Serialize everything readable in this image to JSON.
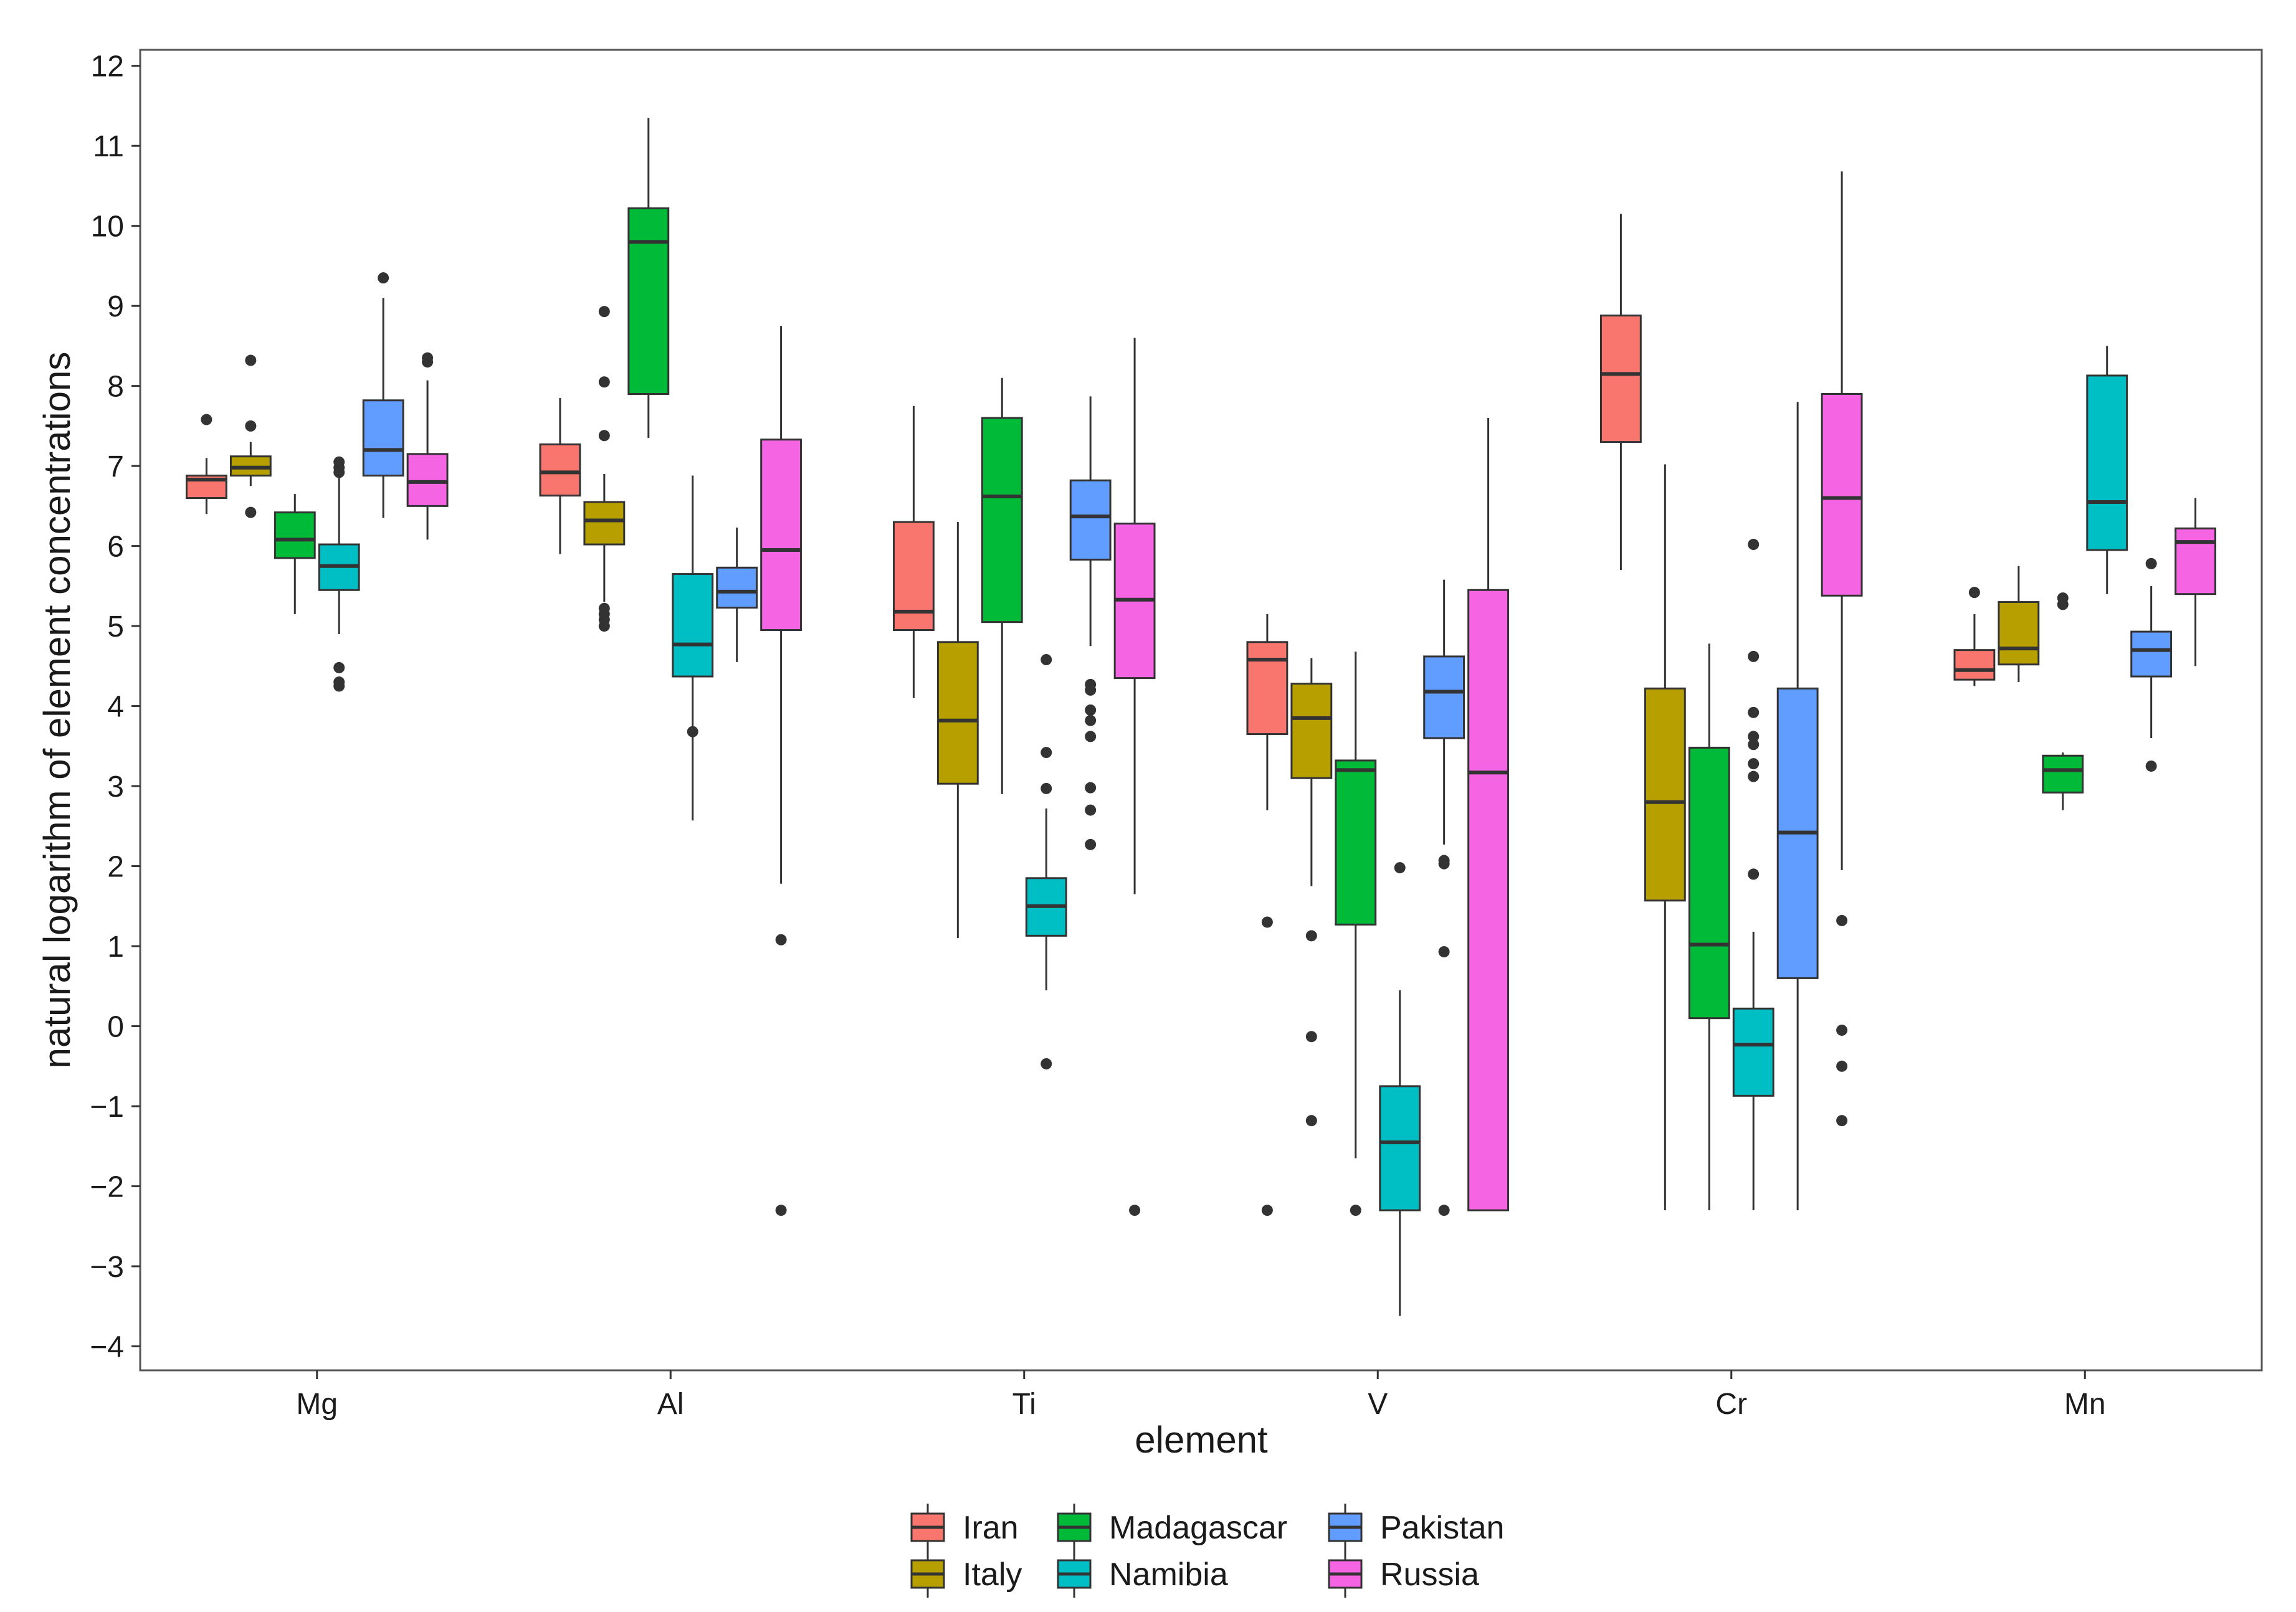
{
  "chart_data": {
    "type": "boxplot",
    "title": "",
    "xlabel": "element",
    "ylabel": "natural logarithm of element concentrations",
    "ylim": [
      -4.3,
      12.2
    ],
    "yticks": [
      "-4",
      "-3",
      "-2",
      "-1",
      "0",
      "1",
      "2",
      "3",
      "4",
      "5",
      "6",
      "7",
      "8",
      "9",
      "10",
      "11",
      "12"
    ],
    "categories": [
      "Mg",
      "Al",
      "Ti",
      "V",
      "Cr",
      "Mn"
    ],
    "legend_position": "bottom",
    "series": [
      {
        "name": "Iran",
        "color": "#F8766D",
        "boxes": [
          {
            "min": 6.4,
            "q1": 6.6,
            "median": 6.83,
            "q3": 6.88,
            "max": 7.1,
            "outliers": [
              7.58
            ]
          },
          {
            "min": 5.9,
            "q1": 6.63,
            "median": 6.92,
            "q3": 7.27,
            "max": 7.85,
            "outliers": []
          },
          {
            "min": 4.1,
            "q1": 4.95,
            "median": 5.18,
            "q3": 6.3,
            "max": 7.75,
            "outliers": []
          },
          {
            "min": 2.7,
            "q1": 3.65,
            "median": 4.58,
            "q3": 4.8,
            "max": 5.15,
            "outliers": [
              1.3,
              -2.3
            ]
          },
          {
            "min": 5.7,
            "q1": 7.3,
            "median": 8.15,
            "q3": 8.88,
            "max": 10.15,
            "outliers": []
          },
          {
            "min": 4.25,
            "q1": 4.33,
            "median": 4.45,
            "q3": 4.7,
            "max": 5.15,
            "outliers": [
              5.42
            ]
          }
        ]
      },
      {
        "name": "Italy",
        "color": "#B79F00",
        "boxes": [
          {
            "min": 6.75,
            "q1": 6.88,
            "median": 6.98,
            "q3": 7.12,
            "max": 7.3,
            "outliers": [
              8.32,
              7.5,
              6.42
            ]
          },
          {
            "min": 5.3,
            "q1": 6.02,
            "median": 6.32,
            "q3": 6.55,
            "max": 6.9,
            "outliers": [
              8.93,
              8.05,
              7.38,
              5.22,
              5.15,
              5.08,
              5.0
            ]
          },
          {
            "min": 1.1,
            "q1": 3.03,
            "median": 3.82,
            "q3": 4.8,
            "max": 6.3,
            "outliers": []
          },
          {
            "min": 1.75,
            "q1": 3.1,
            "median": 3.85,
            "q3": 4.28,
            "max": 4.6,
            "outliers": [
              1.13,
              -0.13,
              -1.18
            ]
          },
          {
            "min": -2.3,
            "q1": 1.57,
            "median": 2.8,
            "q3": 4.22,
            "max": 7.02,
            "outliers": []
          },
          {
            "min": 4.3,
            "q1": 4.52,
            "median": 4.72,
            "q3": 5.3,
            "max": 5.75,
            "outliers": []
          }
        ]
      },
      {
        "name": "Madagascar",
        "color": "#00BA38",
        "boxes": [
          {
            "min": 5.15,
            "q1": 5.85,
            "median": 6.08,
            "q3": 6.42,
            "max": 6.65,
            "outliers": []
          },
          {
            "min": 7.35,
            "q1": 7.9,
            "median": 9.8,
            "q3": 10.22,
            "max": 11.35,
            "outliers": []
          },
          {
            "min": 2.9,
            "q1": 5.05,
            "median": 6.62,
            "q3": 7.6,
            "max": 8.1,
            "outliers": []
          },
          {
            "min": -1.65,
            "q1": 1.27,
            "median": 3.2,
            "q3": 3.32,
            "max": 4.68,
            "outliers": [
              -2.3
            ]
          },
          {
            "min": -2.3,
            "q1": 0.1,
            "median": 1.02,
            "q3": 3.48,
            "max": 4.78,
            "outliers": []
          },
          {
            "min": 2.7,
            "q1": 2.92,
            "median": 3.2,
            "q3": 3.38,
            "max": 3.42,
            "outliers": [
              5.35,
              5.27
            ]
          }
        ]
      },
      {
        "name": "Namibia",
        "color": "#00BFC4",
        "boxes": [
          {
            "min": 4.9,
            "q1": 5.45,
            "median": 5.75,
            "q3": 6.02,
            "max": 6.85,
            "outliers": [
              7.05,
              6.98,
              6.92,
              4.48,
              4.3,
              4.25
            ]
          },
          {
            "min": 2.57,
            "q1": 4.37,
            "median": 4.77,
            "q3": 5.65,
            "max": 6.88,
            "outliers": [
              3.68
            ]
          },
          {
            "min": 0.45,
            "q1": 1.13,
            "median": 1.5,
            "q3": 1.85,
            "max": 2.72,
            "outliers": [
              4.58,
              3.42,
              2.97,
              -0.47
            ]
          },
          {
            "min": -3.62,
            "q1": -2.3,
            "median": -1.45,
            "q3": -0.75,
            "max": 0.45,
            "outliers": [
              1.98
            ]
          },
          {
            "min": -2.3,
            "q1": -0.87,
            "median": -0.23,
            "q3": 0.22,
            "max": 1.18,
            "outliers": [
              6.02,
              4.62,
              3.92,
              3.62,
              3.52,
              3.28,
              3.12,
              1.9
            ]
          },
          {
            "min": 5.4,
            "q1": 5.95,
            "median": 6.55,
            "q3": 8.13,
            "max": 8.5,
            "outliers": []
          }
        ]
      },
      {
        "name": "Pakistan",
        "color": "#619CFF",
        "boxes": [
          {
            "min": 6.35,
            "q1": 6.88,
            "median": 7.2,
            "q3": 7.82,
            "max": 9.1,
            "outliers": [
              9.35
            ]
          },
          {
            "min": 4.55,
            "q1": 5.23,
            "median": 5.43,
            "q3": 5.73,
            "max": 6.23,
            "outliers": []
          },
          {
            "min": 4.75,
            "q1": 5.83,
            "median": 6.37,
            "q3": 6.82,
            "max": 7.87,
            "outliers": [
              4.27,
              4.2,
              3.95,
              3.82,
              3.62,
              2.98,
              2.7,
              2.27
            ]
          },
          {
            "min": 2.27,
            "q1": 3.6,
            "median": 4.18,
            "q3": 4.62,
            "max": 5.58,
            "outliers": [
              2.07,
              2.03,
              0.93,
              -2.3
            ]
          },
          {
            "min": -2.3,
            "q1": 0.6,
            "median": 2.42,
            "q3": 4.22,
            "max": 7.8,
            "outliers": []
          },
          {
            "min": 3.6,
            "q1": 4.37,
            "median": 4.7,
            "q3": 4.93,
            "max": 5.5,
            "outliers": [
              5.78,
              3.25
            ]
          }
        ]
      },
      {
        "name": "Russia",
        "color": "#F564E3",
        "boxes": [
          {
            "min": 6.08,
            "q1": 6.5,
            "median": 6.8,
            "q3": 7.15,
            "max": 8.07,
            "outliers": [
              8.35,
              8.3
            ]
          },
          {
            "min": 1.78,
            "q1": 4.95,
            "median": 5.95,
            "q3": 7.33,
            "max": 8.75,
            "outliers": [
              1.08,
              -2.3
            ]
          },
          {
            "min": 1.65,
            "q1": 4.35,
            "median": 5.33,
            "q3": 6.28,
            "max": 8.6,
            "outliers": [
              -2.3
            ]
          },
          {
            "min": -2.3,
            "q1": -2.3,
            "median": 3.17,
            "q3": 5.45,
            "max": 7.6,
            "outliers": []
          },
          {
            "min": 1.95,
            "q1": 5.38,
            "median": 6.6,
            "q3": 7.9,
            "max": 10.68,
            "outliers": [
              1.32,
              -0.05,
              -0.5,
              -1.18
            ]
          },
          {
            "min": 4.5,
            "q1": 5.4,
            "median": 6.05,
            "q3": 6.22,
            "max": 6.6,
            "outliers": []
          }
        ]
      }
    ]
  }
}
